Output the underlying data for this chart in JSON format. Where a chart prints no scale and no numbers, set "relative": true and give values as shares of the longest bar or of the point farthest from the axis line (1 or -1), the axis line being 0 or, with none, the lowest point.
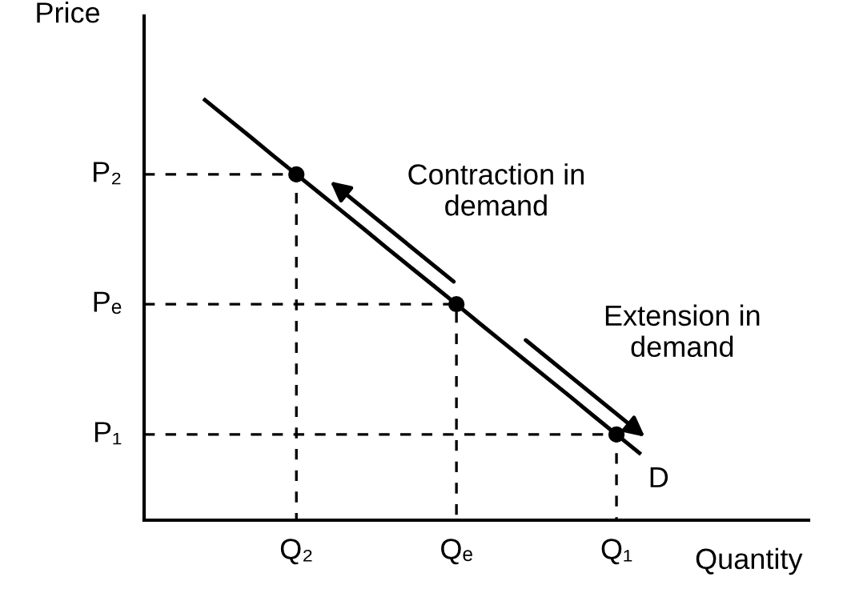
{
  "chart_data": {
    "type": "line",
    "xlabel": "Quantity",
    "ylabel": "Price",
    "relative": true,
    "categories": [
      null,
      null,
      null,
      null,
      "Q₂",
      null,
      null,
      null,
      null,
      null,
      null,
      "Qₑ",
      null,
      null,
      null,
      null,
      null,
      null,
      "Q₁",
      null
    ],
    "series": [
      {
        "name": "D",
        "color": "#000000",
        "values": [
          1,
          0.956,
          0.912,
          0.867,
          0.823,
          0.779,
          0.735,
          0.691,
          0.646,
          0.602,
          0.558,
          0.514,
          0.469,
          0.425,
          0.381,
          0.337,
          0.293,
          0.248,
          0.204,
          0.16
        ]
      },
      {
        "type": "scatter",
        "color": "#000000",
        "marker": "circle",
        "values": [
          null,
          null,
          null,
          null,
          0.823,
          null,
          null,
          null,
          null,
          null,
          null,
          0.514,
          null,
          null,
          null,
          null,
          null,
          null,
          0.204,
          null
        ]
      }
    ],
    "annotations": [
      "Contraction in\ndemand",
      "Extension in\ndemand",
      "P₂",
      "Pₑ",
      "P₁"
    ]
  }
}
